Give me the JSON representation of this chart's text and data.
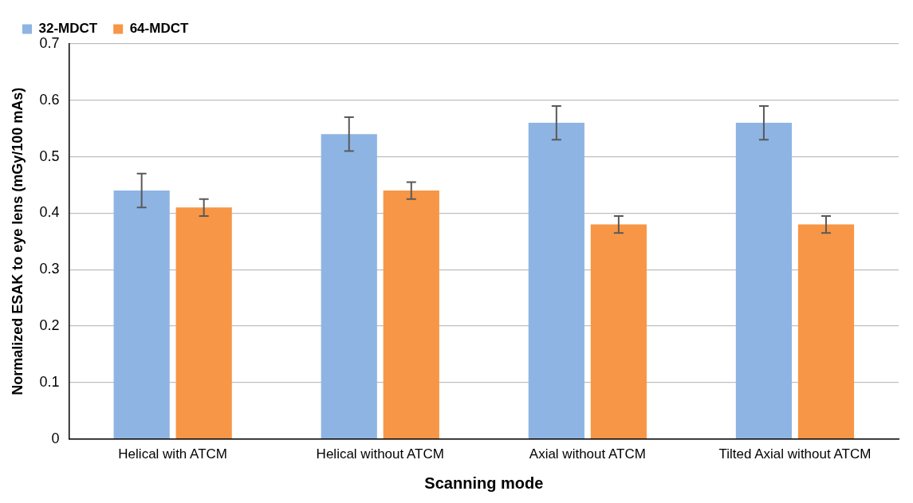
{
  "chart_data": {
    "type": "bar",
    "xlabel": "Scanning mode",
    "ylabel": "Normalized ESAK to eye lens (mGy/100 mAs)",
    "categories": [
      "Helical with ATCM",
      "Helical without ATCM",
      "Axial without ATCM",
      "Tilted Axial without ATCM"
    ],
    "series": [
      {
        "name": "32-MDCT",
        "color": "#8eb4e3",
        "values": [
          0.44,
          0.54,
          0.56,
          0.56
        ],
        "errors": [
          0.03,
          0.03,
          0.03,
          0.03
        ]
      },
      {
        "name": "64-MDCT",
        "color": "#f79646",
        "values": [
          0.41,
          0.44,
          0.38,
          0.38
        ],
        "errors": [
          0.015,
          0.015,
          0.015,
          0.015
        ]
      }
    ],
    "ylim": [
      0,
      0.7
    ],
    "yticks": [
      0,
      0.1,
      0.2,
      0.3,
      0.4,
      0.5,
      0.6,
      0.7
    ],
    "grid": "y",
    "legend": "top left"
  }
}
